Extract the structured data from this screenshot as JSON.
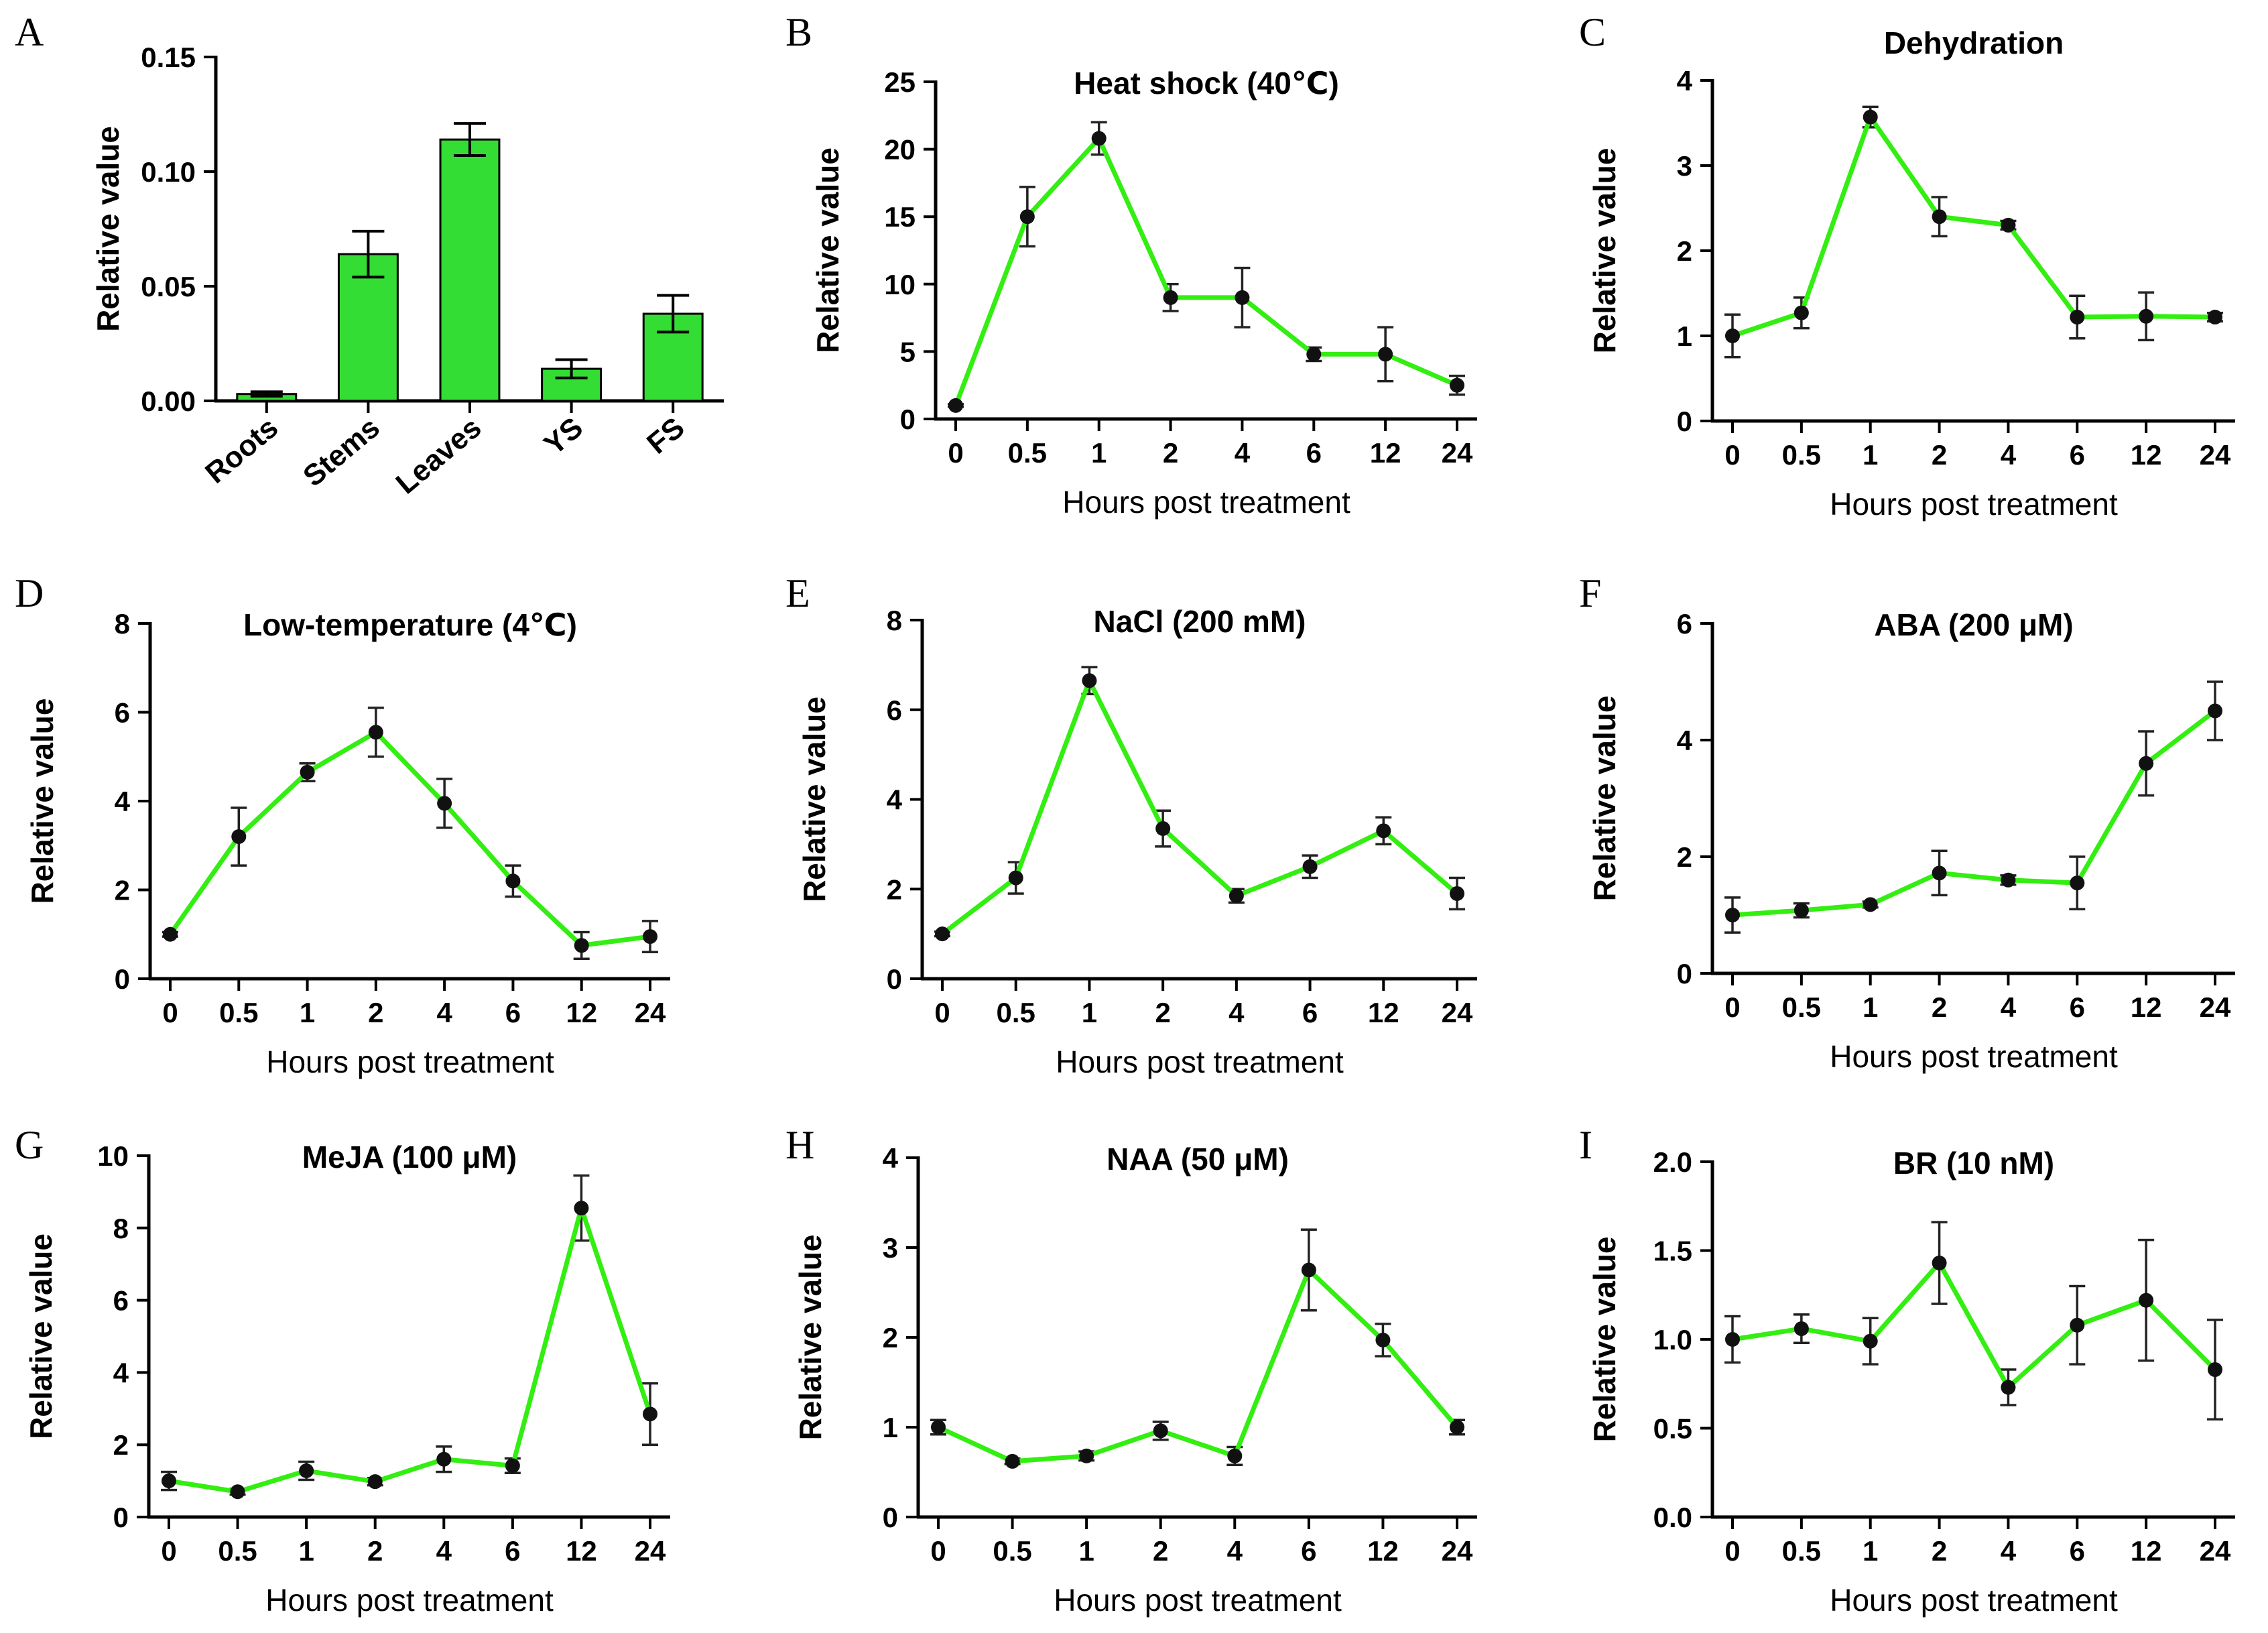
{
  "chart_data": [
    {
      "panel": "A",
      "type": "bar",
      "title": "",
      "xlabel": "",
      "ylabel": "Relative value",
      "categories": [
        "Roots",
        "Stems",
        "Leaves",
        "YS",
        "FS"
      ],
      "values": [
        0.003,
        0.064,
        0.114,
        0.014,
        0.038
      ],
      "errors": [
        0.001,
        0.01,
        0.007,
        0.004,
        0.008
      ],
      "ylim": [
        0,
        0.15
      ],
      "yticks": [
        "0.00",
        "0.05",
        "0.10",
        "0.15"
      ],
      "bar_color": "#33dd33"
    },
    {
      "panel": "B",
      "type": "line",
      "title": "Heat shock (40℃)",
      "xlabel": "Hours post treatment",
      "ylabel": "Relative value",
      "categories": [
        "0",
        "0.5",
        "1",
        "2",
        "4",
        "6",
        "12",
        "24"
      ],
      "values": [
        1.0,
        15.0,
        20.8,
        9.0,
        9.0,
        4.8,
        4.8,
        2.5
      ],
      "errors": [
        0.1,
        2.2,
        1.2,
        1.0,
        2.2,
        0.5,
        2.0,
        0.7
      ],
      "ylim": [
        0,
        25
      ],
      "yticks": [
        "0",
        "5",
        "10",
        "15",
        "20",
        "25"
      ],
      "line_color": "#33ee11"
    },
    {
      "panel": "C",
      "type": "line",
      "title": "Dehydration",
      "xlabel": "Hours post treatment",
      "ylabel": "Relative value",
      "categories": [
        "0",
        "0.5",
        "1",
        "2",
        "4",
        "6",
        "12",
        "24"
      ],
      "values": [
        1.0,
        1.27,
        3.57,
        2.4,
        2.3,
        1.22,
        1.23,
        1.22
      ],
      "errors": [
        0.25,
        0.18,
        0.12,
        0.23,
        0.05,
        0.25,
        0.28,
        0.05
      ],
      "ylim": [
        0,
        4
      ],
      "yticks": [
        "0",
        "1",
        "2",
        "3",
        "4"
      ],
      "line_color": "#33ee11"
    },
    {
      "panel": "D",
      "type": "line",
      "title": "Low-temperature (4℃)",
      "xlabel": "Hours post treatment",
      "ylabel": "Relative value",
      "categories": [
        "0",
        "0.5",
        "1",
        "2",
        "4",
        "6",
        "12",
        "24"
      ],
      "values": [
        1.0,
        3.2,
        4.65,
        5.55,
        3.95,
        2.2,
        0.75,
        0.95
      ],
      "errors": [
        0.05,
        0.65,
        0.2,
        0.55,
        0.55,
        0.35,
        0.3,
        0.35
      ],
      "ylim": [
        0,
        8
      ],
      "yticks": [
        "0",
        "2",
        "4",
        "6",
        "8"
      ],
      "line_color": "#33ee11"
    },
    {
      "panel": "E",
      "type": "line",
      "title": "NaCl (200 mM)",
      "xlabel": "Hours post treatment",
      "ylabel": "Relative value",
      "categories": [
        "0",
        "0.5",
        "1",
        "2",
        "4",
        "6",
        "12",
        "24"
      ],
      "values": [
        1.0,
        2.25,
        6.65,
        3.35,
        1.85,
        2.5,
        3.3,
        1.9
      ],
      "errors": [
        0.05,
        0.35,
        0.3,
        0.4,
        0.15,
        0.25,
        0.3,
        0.35
      ],
      "ylim": [
        0,
        8
      ],
      "yticks": [
        "0",
        "2",
        "4",
        "6",
        "8"
      ],
      "line_color": "#33ee11"
    },
    {
      "panel": "F",
      "type": "line",
      "title": "ABA (200 μM)",
      "xlabel": "Hours post treatment",
      "ylabel": "Relative value",
      "categories": [
        "0",
        "0.5",
        "1",
        "2",
        "4",
        "6",
        "12",
        "24"
      ],
      "values": [
        1.0,
        1.08,
        1.18,
        1.72,
        1.6,
        1.55,
        3.6,
        4.5
      ],
      "errors": [
        0.3,
        0.12,
        0.05,
        0.38,
        0.08,
        0.45,
        0.55,
        0.5
      ],
      "ylim": [
        0,
        6
      ],
      "yticks": [
        "0",
        "2",
        "4",
        "6"
      ],
      "line_color": "#33ee11"
    },
    {
      "panel": "G",
      "type": "line",
      "title": "MeJA (100 μM)",
      "xlabel": "Hours post treatment",
      "ylabel": "Relative value",
      "categories": [
        "0",
        "0.5",
        "1",
        "2",
        "4",
        "6",
        "12",
        "24"
      ],
      "values": [
        1.0,
        0.7,
        1.28,
        0.98,
        1.6,
        1.42,
        8.55,
        2.85
      ],
      "errors": [
        0.25,
        0.08,
        0.25,
        0.1,
        0.35,
        0.2,
        0.9,
        0.85
      ],
      "ylim": [
        0,
        10
      ],
      "yticks": [
        "0",
        "2",
        "4",
        "6",
        "8",
        "10"
      ],
      "line_color": "#33ee11"
    },
    {
      "panel": "H",
      "type": "line",
      "title": "NAA (50 μM)",
      "xlabel": "Hours post treatment",
      "ylabel": "Relative value",
      "categories": [
        "0",
        "0.5",
        "1",
        "2",
        "4",
        "6",
        "12",
        "24"
      ],
      "values": [
        1.0,
        0.62,
        0.68,
        0.96,
        0.68,
        2.75,
        1.97,
        1.0
      ],
      "errors": [
        0.08,
        0.03,
        0.05,
        0.1,
        0.1,
        0.45,
        0.18,
        0.08
      ],
      "ylim": [
        0,
        4
      ],
      "yticks": [
        "0",
        "1",
        "2",
        "3",
        "4"
      ],
      "line_color": "#33ee11"
    },
    {
      "panel": "I",
      "type": "line",
      "title": "BR (10 nM)",
      "xlabel": "Hours post treatment",
      "ylabel": "Relative value",
      "categories": [
        "0",
        "0.5",
        "1",
        "2",
        "4",
        "6",
        "12",
        "24"
      ],
      "values": [
        1.0,
        1.06,
        0.99,
        1.43,
        0.73,
        1.08,
        1.22,
        0.83
      ],
      "errors": [
        0.13,
        0.08,
        0.13,
        0.23,
        0.1,
        0.22,
        0.34,
        0.28
      ],
      "ylim": [
        0,
        2.0
      ],
      "yticks": [
        "0.0",
        "0.5",
        "1.0",
        "1.5",
        "2.0"
      ],
      "line_color": "#33ee11"
    }
  ]
}
